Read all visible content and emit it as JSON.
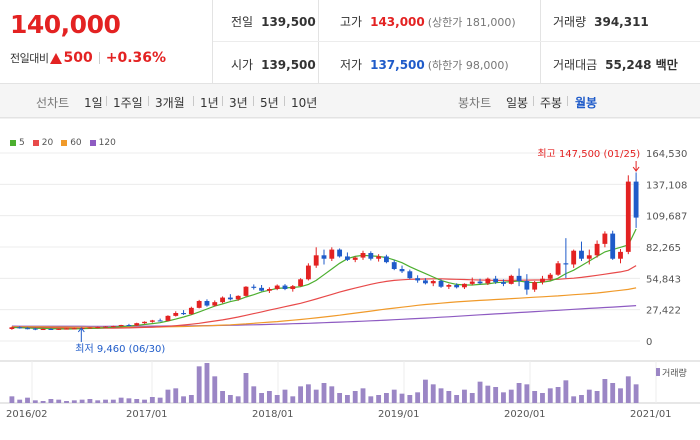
{
  "quote": {
    "price": "140,000",
    "change_label": "전일대비",
    "change": "500",
    "change_pct": "+0.36%",
    "prev_label": "전일",
    "prev_val": "139,500",
    "open_label": "시가",
    "open_val": "139,500",
    "high_label": "고가",
    "high_val": "143,000",
    "upper_limit": "(상한가 181,000)",
    "low_label": "저가",
    "low_val": "137,500",
    "lower_limit": "(하한가 98,000)",
    "volume_label": "거래량",
    "volume_val": "394,311",
    "amount_label": "거래대금",
    "amount_val": "55,248 백만"
  },
  "toolbar": {
    "line_label": "선차트",
    "line_ranges": [
      "1일",
      "1주일",
      "3개월",
      "1년",
      "3년",
      "5년",
      "10년"
    ],
    "candle_label": "봉차트",
    "candle_ranges": [
      "일봉",
      "주봉",
      "월봉"
    ],
    "active_candle": "월봉"
  },
  "colors": {
    "up": "#e32222",
    "down": "#1f5bc9",
    "ma5": "#4caf2f",
    "ma20": "#e84a4a",
    "ma60": "#f09a2a",
    "ma120": "#8e5bc2",
    "volume": "#9b86c5"
  },
  "chart_data": {
    "type": "candlestick",
    "period": "monthly",
    "legend": [
      "5",
      "20",
      "60",
      "120"
    ],
    "y_ticks": [
      "164,530",
      "137,108",
      "109,687",
      "82,265",
      "54,843",
      "27,422",
      "0"
    ],
    "y_tick_values": [
      164530,
      137108,
      109687,
      82265,
      54843,
      27422,
      0
    ],
    "ylim": [
      0,
      164530
    ],
    "x_ticks": [
      "2016/02",
      "2017/01",
      "2018/01",
      "2019/01",
      "2020/01",
      "2021/01"
    ],
    "high_annotation": "최고 147,500 (01/25)",
    "low_annotation": "최저 9,460 (06/30)",
    "volume_label": "거래량",
    "candles": [
      [
        10500,
        12500,
        9800,
        12000
      ],
      [
        12000,
        12800,
        10800,
        11200
      ],
      [
        11200,
        12000,
        10200,
        10800
      ],
      [
        10800,
        11500,
        9460,
        10000
      ],
      [
        10000,
        11000,
        9600,
        10500
      ],
      [
        10500,
        11200,
        9900,
        10200
      ],
      [
        10200,
        10900,
        9700,
        10600
      ],
      [
        10600,
        11300,
        10100,
        10900
      ],
      [
        10900,
        11600,
        10400,
        11100
      ],
      [
        11100,
        11800,
        10600,
        11400
      ],
      [
        11400,
        12100,
        10900,
        11800
      ],
      [
        11800,
        12500,
        11200,
        12200
      ],
      [
        12200,
        13000,
        11700,
        12600
      ],
      [
        12600,
        13400,
        12000,
        13000
      ],
      [
        13000,
        14200,
        12600,
        14000
      ],
      [
        14000,
        15000,
        13200,
        13500
      ],
      [
        13500,
        16000,
        13100,
        15600
      ],
      [
        15600,
        17200,
        15000,
        16800
      ],
      [
        16800,
        18500,
        16000,
        18000
      ],
      [
        18000,
        19600,
        17200,
        17600
      ],
      [
        17600,
        22500,
        17200,
        22000
      ],
      [
        22000,
        26000,
        21400,
        24500
      ],
      [
        24500,
        27000,
        22800,
        23500
      ],
      [
        23500,
        30000,
        23000,
        29000
      ],
      [
        29000,
        36000,
        28500,
        35000
      ],
      [
        35000,
        36500,
        30000,
        31000
      ],
      [
        31000,
        35500,
        30200,
        34000
      ],
      [
        34000,
        39000,
        33000,
        38000
      ],
      [
        38000,
        41000,
        35500,
        36500
      ],
      [
        36500,
        40000,
        35200,
        39500
      ],
      [
        39500,
        48000,
        39000,
        47500
      ],
      [
        47500,
        49500,
        45000,
        46500
      ],
      [
        46500,
        49000,
        43500,
        44000
      ],
      [
        44000,
        47000,
        42000,
        45500
      ],
      [
        45500,
        49500,
        44500,
        48500
      ],
      [
        48500,
        49800,
        44500,
        45500
      ],
      [
        45500,
        49000,
        43200,
        48000
      ],
      [
        48000,
        55000,
        47500,
        54000
      ],
      [
        54000,
        68000,
        53000,
        66000
      ],
      [
        66000,
        82000,
        64000,
        75000
      ],
      [
        75000,
        80000,
        67000,
        72000
      ],
      [
        72000,
        82000,
        70000,
        80000
      ],
      [
        80000,
        81000,
        73000,
        74000
      ],
      [
        74000,
        77500,
        70000,
        71000
      ],
      [
        71000,
        74000,
        69000,
        73000
      ],
      [
        73000,
        79000,
        71000,
        77000
      ],
      [
        77000,
        78500,
        70500,
        72000
      ],
      [
        72000,
        76000,
        69500,
        74000
      ],
      [
        74000,
        75500,
        68000,
        69000
      ],
      [
        69000,
        71000,
        62000,
        63000
      ],
      [
        63000,
        66000,
        59500,
        61000
      ],
      [
        61000,
        62500,
        54000,
        55000
      ],
      [
        55000,
        57500,
        51000,
        53000
      ],
      [
        53000,
        55000,
        49500,
        50500
      ],
      [
        50500,
        53500,
        48000,
        52500
      ],
      [
        52500,
        54000,
        46500,
        47500
      ],
      [
        47500,
        50000,
        45500,
        49000
      ],
      [
        49000,
        50500,
        46000,
        47000
      ],
      [
        47000,
        50500,
        45500,
        50000
      ],
      [
        50000,
        55500,
        48800,
        52000
      ],
      [
        52000,
        54500,
        49500,
        50500
      ],
      [
        50500,
        55500,
        49000,
        54500
      ],
      [
        54500,
        57000,
        50000,
        51500
      ],
      [
        51500,
        54000,
        48000,
        50000
      ],
      [
        50000,
        58000,
        49500,
        57000
      ],
      [
        57000,
        63500,
        48000,
        52500
      ],
      [
        52500,
        58500,
        40500,
        45000
      ],
      [
        45000,
        52500,
        43000,
        51500
      ],
      [
        51500,
        57000,
        49500,
        54500
      ],
      [
        54500,
        59500,
        53000,
        58000
      ],
      [
        58000,
        70000,
        57000,
        68000
      ],
      [
        68000,
        90000,
        55000,
        67000
      ],
      [
        67000,
        80000,
        64000,
        79000
      ],
      [
        79000,
        87000,
        70000,
        72000
      ],
      [
        72000,
        80000,
        67000,
        75000
      ],
      [
        75000,
        88000,
        73000,
        85000
      ],
      [
        85000,
        96000,
        82000,
        94000
      ],
      [
        94000,
        96500,
        71000,
        72000
      ],
      [
        72000,
        80500,
        68000,
        78000
      ],
      [
        78000,
        145000,
        76000,
        139500
      ],
      [
        139500,
        147500,
        99000,
        108000
      ]
    ],
    "ma5": [
      11800,
      11600,
      11400,
      11100,
      11000,
      10800,
      10600,
      10500,
      10600,
      10800,
      11000,
      11200,
      11600,
      12100,
      12600,
      13100,
      13700,
      14400,
      15200,
      16000,
      17500,
      19200,
      21000,
      23000,
      25500,
      28000,
      30500,
      32500,
      34500,
      36000,
      38500,
      40500,
      43000,
      44500,
      46000,
      46500,
      46800,
      47500,
      49500,
      53000,
      58000,
      63000,
      68000,
      72000,
      74000,
      75000,
      74500,
      74000,
      73000,
      71000,
      68500,
      65000,
      62000,
      59000,
      56000,
      53000,
      51000,
      49500,
      49000,
      49000,
      49500,
      50000,
      51000,
      51500,
      52000,
      52500,
      51500,
      51000,
      51500,
      52500,
      55000,
      59000,
      62000,
      66000,
      70000,
      74000,
      78000,
      80000,
      82000,
      84000,
      98000
    ],
    "ma20": [
      12000,
      11900,
      11800,
      11700,
      11600,
      11500,
      11400,
      11300,
      11200,
      11100,
      11100,
      11100,
      11200,
      11300,
      11400,
      11500,
      11700,
      11900,
      12200,
      12500,
      12900,
      13400,
      14000,
      14700,
      15500,
      16500,
      17500,
      18500,
      19700,
      21000,
      22500,
      24000,
      25500,
      27000,
      28500,
      30000,
      31500,
      33000,
      34800,
      36800,
      38800,
      40800,
      42800,
      44600,
      46300,
      48000,
      49600,
      51000,
      52200,
      53000,
      53600,
      54000,
      54200,
      54300,
      54400,
      54400,
      54200,
      54000,
      53800,
      53600,
      53400,
      53200,
      53000,
      53000,
      53100,
      53200,
      53300,
      53400,
      53500,
      53700,
      54000,
      54500,
      55000,
      55700,
      56500,
      57500,
      58500,
      59500,
      60500,
      62000,
      66000
    ],
    "ma60": [
      12500,
      12450,
      12400,
      12350,
      12300,
      12250,
      12200,
      12150,
      12100,
      12050,
      12000,
      11950,
      11950,
      11950,
      11950,
      11950,
      12000,
      12050,
      12150,
      12250,
      12400,
      12550,
      12700,
      12900,
      13100,
      13300,
      13600,
      13900,
      14200,
      14600,
      15000,
      15500,
      16000,
      16500,
      17000,
      17600,
      18200,
      18800,
      19500,
      20200,
      21000,
      21800,
      22600,
      23500,
      24400,
      25300,
      26200,
      27100,
      28000,
      28800,
      29600,
      30400,
      31200,
      31900,
      32500,
      33100,
      33700,
      34200,
      34700,
      35100,
      35500,
      35900,
      36300,
      36700,
      37100,
      37500,
      37900,
      38300,
      38700,
      39100,
      39500,
      40000,
      40500,
      41000,
      41500,
      42000,
      42800,
      43600,
      44400,
      45200,
      46500
    ],
    "ma120": [
      13000,
      12990,
      12980,
      12970,
      12960,
      12950,
      12940,
      12930,
      12920,
      12910,
      12900,
      12900,
      12900,
      12910,
      12920,
      12940,
      12960,
      12990,
      13020,
      13060,
      13100,
      13150,
      13210,
      13280,
      13360,
      13450,
      13550,
      13660,
      13780,
      13910,
      14050,
      14200,
      14360,
      14530,
      14710,
      14900,
      15100,
      15310,
      15530,
      15760,
      16000,
      16250,
      16510,
      16780,
      17060,
      17350,
      17650,
      17960,
      18280,
      18610,
      18950,
      19300,
      19660,
      20030,
      20410,
      20800,
      21200,
      21610,
      22030,
      22460,
      22900,
      23300,
      23700,
      24100,
      24500,
      24900,
      25300,
      25700,
      26100,
      26500,
      26900,
      27300,
      27700,
      28100,
      28500,
      28900,
      29300,
      29700,
      30100,
      30500,
      31000
    ],
    "volume": [
      10,
      5,
      8,
      4,
      3,
      6,
      5,
      3,
      4,
      5,
      6,
      4,
      5,
      5,
      8,
      7,
      6,
      5,
      9,
      8,
      20,
      22,
      10,
      12,
      55,
      60,
      40,
      18,
      12,
      10,
      45,
      25,
      15,
      18,
      12,
      20,
      10,
      25,
      28,
      20,
      30,
      25,
      15,
      12,
      18,
      22,
      10,
      12,
      15,
      20,
      14,
      12,
      16,
      35,
      28,
      22,
      18,
      12,
      20,
      15,
      32,
      26,
      24,
      16,
      20,
      30,
      28,
      18,
      15,
      22,
      24,
      34,
      10,
      12,
      20,
      18,
      36,
      30,
      22,
      40,
      28
    ]
  }
}
